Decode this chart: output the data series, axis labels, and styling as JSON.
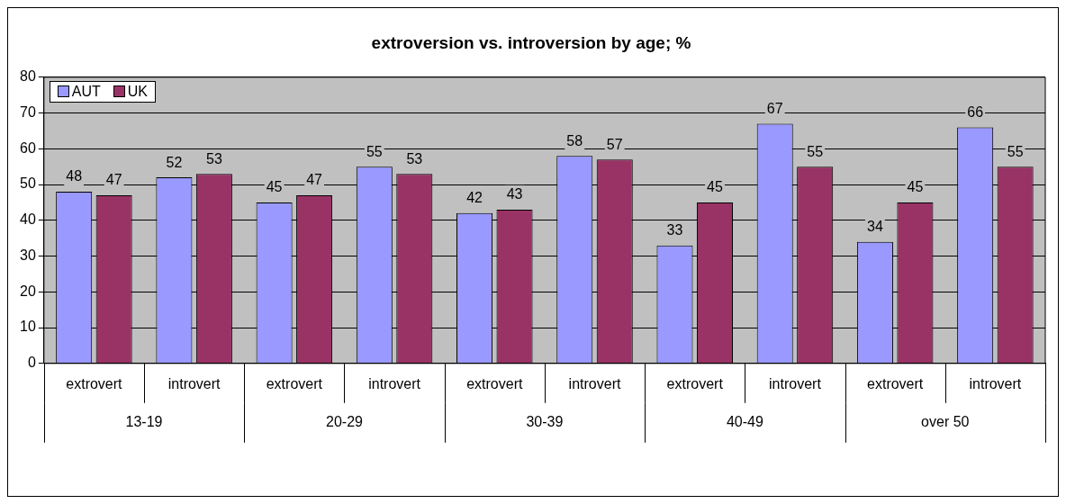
{
  "chart_data": {
    "type": "bar",
    "title": "extroversion vs. introversion by age; %",
    "categories": [
      "extrovert",
      "introvert",
      "extrovert",
      "introvert",
      "extrovert",
      "introvert",
      "extrovert",
      "introvert",
      "extrovert",
      "introvert"
    ],
    "series": [
      {
        "name": "AUT",
        "color": "#9999ff",
        "values": [
          48,
          52,
          45,
          55,
          42,
          58,
          33,
          67,
          34,
          66
        ]
      },
      {
        "name": "UK",
        "color": "#993366",
        "values": [
          47,
          53,
          47,
          53,
          43,
          57,
          45,
          55,
          45,
          55
        ]
      }
    ],
    "annotations": [
      "13-19",
      "20-29",
      "30-39",
      "40-49",
      "over 50"
    ],
    "ylim": [
      0,
      80
    ],
    "yticks": [
      0,
      10,
      20,
      30,
      40,
      50,
      60,
      70,
      80
    ],
    "grid": "y",
    "legend": "top left",
    "data_labels": true
  }
}
